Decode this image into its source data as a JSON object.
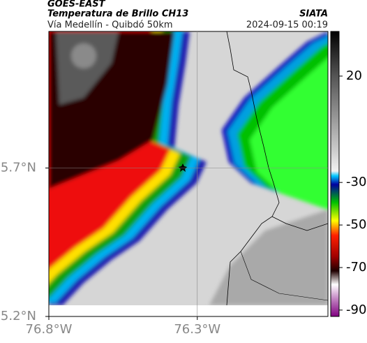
{
  "header": {
    "title": "GOES-EAST",
    "subtitle": "Temperatura de Brillo CH13",
    "source": "SIATA",
    "route": "Vía Medellín - Quibdó 50km",
    "timestamp": "2024-09-15 00:19"
  },
  "map": {
    "xlim": [
      -76.8,
      -75.86
    ],
    "ylim": [
      5.2,
      6.16
    ],
    "xticks": [
      {
        "value": -76.8,
        "label": "76.8°W"
      },
      {
        "value": -76.3,
        "label": "76.3°W"
      }
    ],
    "yticks": [
      {
        "value": 5.7,
        "label": "5.7°N"
      },
      {
        "value": 5.2,
        "label": "5.2°N"
      }
    ],
    "grid": true
  },
  "colorbar": {
    "clim": [
      -93,
      41
    ],
    "ticks": [
      20,
      -30,
      -50,
      -70,
      -90
    ]
  }
}
